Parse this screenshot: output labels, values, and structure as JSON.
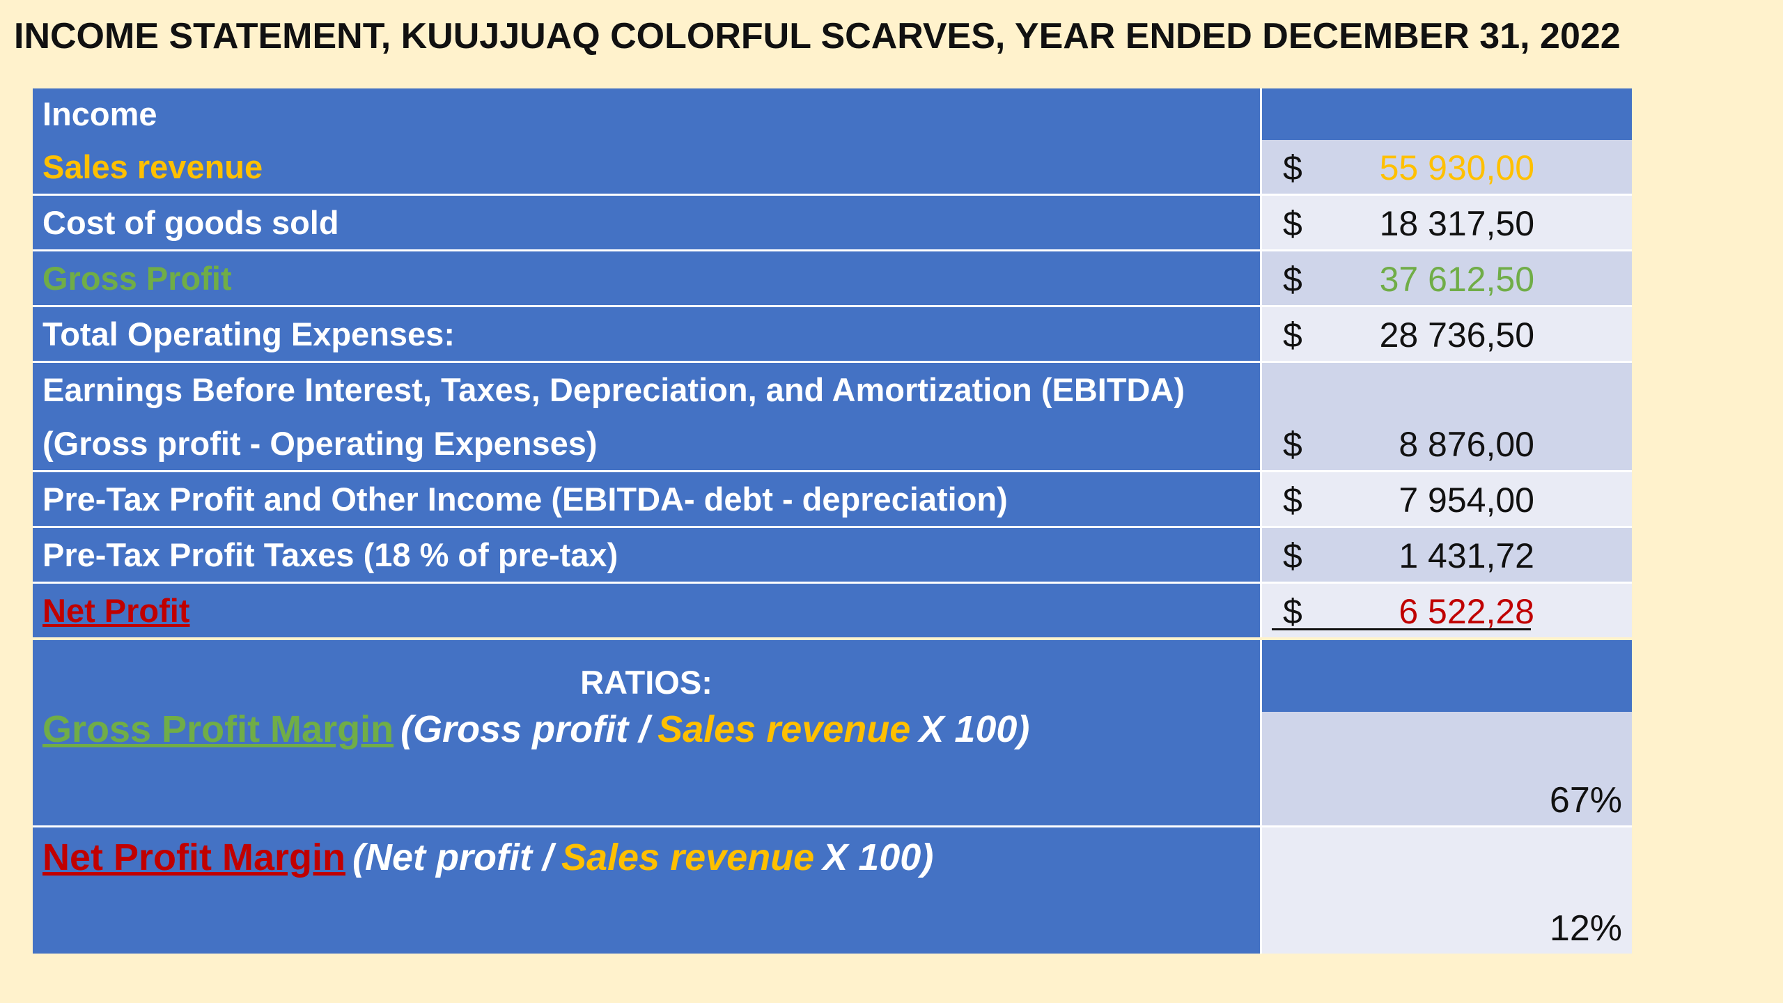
{
  "title": "INCOME STATEMENT, KUUJJUAQ COLORFUL SCARVES, YEAR ENDED DECEMBER 31, 2022",
  "table": {
    "header": "Income",
    "rows": [
      {
        "label": "Sales revenue",
        "currency": "$",
        "amount": "55 930,00"
      },
      {
        "label": "Cost of goods sold",
        "currency": "$",
        "amount": "18 317,50"
      },
      {
        "label": "Gross Profit",
        "currency": "$",
        "amount": "37 612,50"
      },
      {
        "label": "Total Operating Expenses:",
        "currency": "$",
        "amount": "28 736,50"
      },
      {
        "label": "Earnings Before Interest, Taxes, Depreciation, and Amortization (EBITDA) (Gross profit - Operating Expenses)",
        "currency": "$",
        "amount": "8 876,00"
      },
      {
        "label": "Pre-Tax Profit and Other Income (EBITDA- debt - depreciation)",
        "currency": "$",
        "amount": "7 954,00"
      },
      {
        "label": "Pre-Tax Profit Taxes (18 % of pre-tax)",
        "currency": "$",
        "amount": "1 431,72"
      },
      {
        "label": "Net Profit",
        "currency": "$",
        "amount": "6 522,28"
      }
    ]
  },
  "ratios": {
    "header": "RATIOS:",
    "rows": [
      {
        "name": "Gross Profit Margin",
        "formula_start": "(Gross profit /",
        "formula_term": "Sales revenue",
        "formula_end": "X 100)",
        "value": "67%"
      },
      {
        "name": "Net Profit Margin",
        "formula_start": "(Net profit /",
        "formula_term": "Sales revenue",
        "formula_end": "X 100)",
        "value": "12%"
      }
    ]
  }
}
